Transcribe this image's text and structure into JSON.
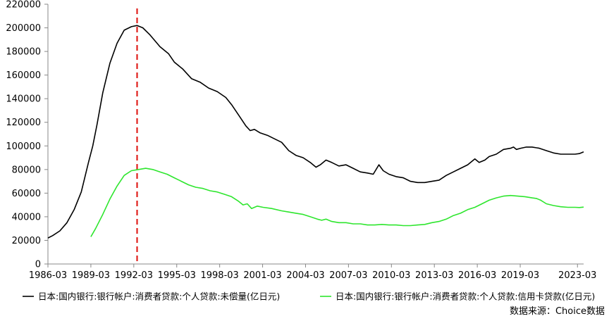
{
  "chart_data": {
    "type": "line",
    "title": "",
    "xlabel": "",
    "ylabel": "",
    "ylim": [
      0,
      220000
    ],
    "y_ticks": [
      "0",
      "20000",
      "40000",
      "60000",
      "80000",
      "100000",
      "120000",
      "140000",
      "160000",
      "180000",
      "200000",
      "220000"
    ],
    "x_ticks": [
      "1986-03",
      "1989-03",
      "1992-03",
      "1995-03",
      "1998-03",
      "2001-03",
      "2004-03",
      "2007-03",
      "2010-03",
      "2013-03",
      "2016-03",
      "2019-03",
      "2023-03"
    ],
    "x_tick_years": [
      1986.17,
      1989.17,
      1992.17,
      1995.17,
      1998.17,
      2001.17,
      2004.17,
      2007.17,
      2010.17,
      2013.17,
      2016.17,
      2019.17,
      2023.17
    ],
    "xlim": [
      1986.17,
      2023.6
    ],
    "grid": false,
    "legend_position": "bottom",
    "reference_line": {
      "x": 1992.4,
      "color": "#e0201c",
      "style": "dashed"
    },
    "series": [
      {
        "name": "日本:国内银行:银行帐户:消费者贷款:个人贷款:未偿量(亿日元)",
        "color": "#000000",
        "points": [
          [
            1986.17,
            22000
          ],
          [
            1986.5,
            24000
          ],
          [
            1987.0,
            28000
          ],
          [
            1987.5,
            35000
          ],
          [
            1988.0,
            46000
          ],
          [
            1988.5,
            61000
          ],
          [
            1989.0,
            86000
          ],
          [
            1989.3,
            100000
          ],
          [
            1989.6,
            118000
          ],
          [
            1990.0,
            145000
          ],
          [
            1990.5,
            170000
          ],
          [
            1991.0,
            187000
          ],
          [
            1991.5,
            198000
          ],
          [
            1992.0,
            201000
          ],
          [
            1992.4,
            202000
          ],
          [
            1992.8,
            200000
          ],
          [
            1993.3,
            194000
          ],
          [
            1994.0,
            184000
          ],
          [
            1994.6,
            178000
          ],
          [
            1995.0,
            171000
          ],
          [
            1995.6,
            165000
          ],
          [
            1996.2,
            157000
          ],
          [
            1996.8,
            154000
          ],
          [
            1997.4,
            149000
          ],
          [
            1998.0,
            146000
          ],
          [
            1998.6,
            141000
          ],
          [
            1999.0,
            135000
          ],
          [
            1999.5,
            126000
          ],
          [
            2000.0,
            117000
          ],
          [
            2000.3,
            113000
          ],
          [
            2000.6,
            114000
          ],
          [
            2001.0,
            111000
          ],
          [
            2001.5,
            109000
          ],
          [
            2002.0,
            106000
          ],
          [
            2002.5,
            103000
          ],
          [
            2003.0,
            96000
          ],
          [
            2003.5,
            92000
          ],
          [
            2004.0,
            90000
          ],
          [
            2004.5,
            86000
          ],
          [
            2004.9,
            82000
          ],
          [
            2005.2,
            84000
          ],
          [
            2005.6,
            88000
          ],
          [
            2006.0,
            86000
          ],
          [
            2006.5,
            83000
          ],
          [
            2007.0,
            84000
          ],
          [
            2007.5,
            81000
          ],
          [
            2008.0,
            78000
          ],
          [
            2008.5,
            77000
          ],
          [
            2008.9,
            76000
          ],
          [
            2009.3,
            84000
          ],
          [
            2009.6,
            79000
          ],
          [
            2010.0,
            76000
          ],
          [
            2010.5,
            74000
          ],
          [
            2011.0,
            73000
          ],
          [
            2011.5,
            70000
          ],
          [
            2012.0,
            69000
          ],
          [
            2012.5,
            69000
          ],
          [
            2013.0,
            70000
          ],
          [
            2013.5,
            71000
          ],
          [
            2014.0,
            75000
          ],
          [
            2014.5,
            78000
          ],
          [
            2015.0,
            81000
          ],
          [
            2015.5,
            84000
          ],
          [
            2016.0,
            89000
          ],
          [
            2016.3,
            86000
          ],
          [
            2016.7,
            88000
          ],
          [
            2017.0,
            91000
          ],
          [
            2017.5,
            93000
          ],
          [
            2018.0,
            97000
          ],
          [
            2018.5,
            98000
          ],
          [
            2018.7,
            99000
          ],
          [
            2018.9,
            97000
          ],
          [
            2019.2,
            98000
          ],
          [
            2019.6,
            99000
          ],
          [
            2020.0,
            99000
          ],
          [
            2020.5,
            98000
          ],
          [
            2021.0,
            96000
          ],
          [
            2021.5,
            94000
          ],
          [
            2022.0,
            93000
          ],
          [
            2022.5,
            93000
          ],
          [
            2023.0,
            93000
          ],
          [
            2023.3,
            93500
          ],
          [
            2023.6,
            95000
          ]
        ]
      },
      {
        "name": "日本:国内银行:银行帐户:消费者贷款:个人贷款:信用卡贷款(亿日元)",
        "color": "#2ee62e",
        "points": [
          [
            1989.17,
            23000
          ],
          [
            1989.5,
            30000
          ],
          [
            1990.0,
            42000
          ],
          [
            1990.5,
            55000
          ],
          [
            1991.0,
            66000
          ],
          [
            1991.5,
            75000
          ],
          [
            1992.0,
            79000
          ],
          [
            1992.5,
            80000
          ],
          [
            1993.0,
            81000
          ],
          [
            1993.5,
            80000
          ],
          [
            1994.0,
            78000
          ],
          [
            1994.5,
            76000
          ],
          [
            1995.0,
            73000
          ],
          [
            1995.5,
            70000
          ],
          [
            1996.0,
            67000
          ],
          [
            1996.5,
            65000
          ],
          [
            1997.0,
            64000
          ],
          [
            1997.5,
            62000
          ],
          [
            1998.0,
            61000
          ],
          [
            1998.5,
            59000
          ],
          [
            1999.0,
            57000
          ],
          [
            1999.5,
            53000
          ],
          [
            1999.8,
            50000
          ],
          [
            2000.1,
            51000
          ],
          [
            2000.4,
            47000
          ],
          [
            2000.8,
            49000
          ],
          [
            2001.2,
            48000
          ],
          [
            2001.8,
            47000
          ],
          [
            2002.5,
            45000
          ],
          [
            2003.0,
            44000
          ],
          [
            2003.5,
            43000
          ],
          [
            2004.0,
            42000
          ],
          [
            2004.5,
            40000
          ],
          [
            2005.0,
            38000
          ],
          [
            2005.3,
            37000
          ],
          [
            2005.6,
            38000
          ],
          [
            2006.0,
            36000
          ],
          [
            2006.5,
            35000
          ],
          [
            2007.0,
            35000
          ],
          [
            2007.5,
            34000
          ],
          [
            2008.0,
            34000
          ],
          [
            2008.5,
            33000
          ],
          [
            2009.0,
            33000
          ],
          [
            2009.5,
            33500
          ],
          [
            2010.0,
            33000
          ],
          [
            2010.5,
            33000
          ],
          [
            2011.0,
            32500
          ],
          [
            2011.5,
            32500
          ],
          [
            2012.0,
            33000
          ],
          [
            2012.5,
            33500
          ],
          [
            2013.0,
            35000
          ],
          [
            2013.5,
            36000
          ],
          [
            2014.0,
            38000
          ],
          [
            2014.5,
            41000
          ],
          [
            2015.0,
            43000
          ],
          [
            2015.5,
            46000
          ],
          [
            2016.0,
            48000
          ],
          [
            2016.5,
            51000
          ],
          [
            2017.0,
            54000
          ],
          [
            2017.5,
            56000
          ],
          [
            2018.0,
            57500
          ],
          [
            2018.5,
            58000
          ],
          [
            2019.0,
            57500
          ],
          [
            2019.5,
            57000
          ],
          [
            2020.0,
            56000
          ],
          [
            2020.3,
            55500
          ],
          [
            2020.6,
            54000
          ],
          [
            2021.0,
            51000
          ],
          [
            2021.5,
            49500
          ],
          [
            2022.0,
            48500
          ],
          [
            2022.5,
            48000
          ],
          [
            2023.0,
            48000
          ],
          [
            2023.3,
            47800
          ],
          [
            2023.6,
            48200
          ]
        ]
      }
    ]
  },
  "source_note": "数据来源：Choice数据"
}
